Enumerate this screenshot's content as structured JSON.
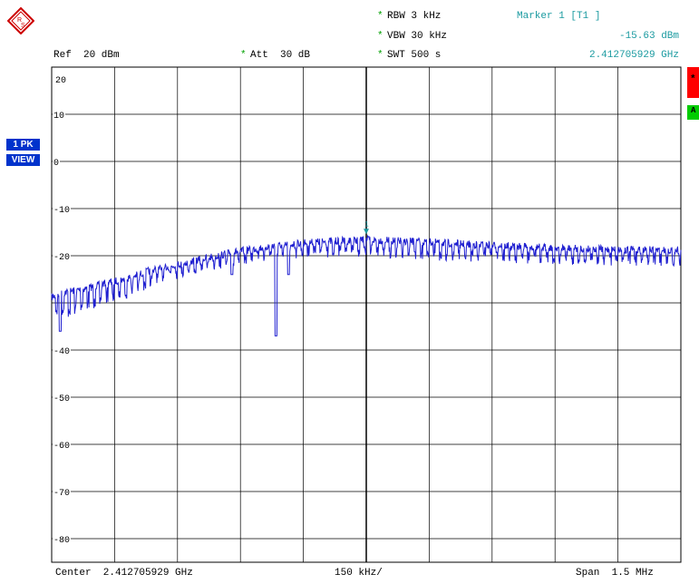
{
  "header": {
    "rbw": "RBW 3 kHz",
    "vbw": "VBW 30 kHz",
    "swt": "SWT 500 s",
    "ref": "Ref  20 dBm",
    "att": "Att  30 dB",
    "star": "*",
    "marker_title": "Marker 1 [T1 ]",
    "marker_level": "-15.63 dBm",
    "marker_freq": "2.412705929 GHz"
  },
  "badges": {
    "trace": "1 PK",
    "view": "VIEW"
  },
  "side_labels": {
    "a": "A",
    "star": "*"
  },
  "footer": {
    "center": "Center  2.412705929 GHz",
    "per_div": "150 kHz/",
    "span": "Span  1.5 MHz"
  },
  "colors": {
    "trace": "#1f1fd0",
    "marker": "#1a9aa0",
    "grid": "#000000",
    "side_red": "#ff0000",
    "side_green": "#00cc00"
  },
  "chart_data": {
    "type": "line",
    "title": "",
    "xlabel": "",
    "ylabel": "",
    "xlim": [
      2.411955929,
      2.413455929
    ],
    "ylim": [
      -85,
      20
    ],
    "yticks": [
      20,
      10,
      0,
      -10,
      -20,
      -30,
      -40,
      -50,
      -60,
      -70,
      -80
    ],
    "ytick_labels": [
      "20",
      "10",
      "0",
      "-10",
      "-20",
      "",
      "-40",
      "-50",
      "-60",
      "-70",
      "-80"
    ],
    "x_divisions": 10,
    "grid": true,
    "series": [
      {
        "x_unit": "GHz",
        "x": [
          2.411955929,
          2.411985929,
          2.412015929,
          2.412045929,
          2.412085929,
          2.412135929,
          2.412185929,
          2.412235929,
          2.412285929,
          2.412335929,
          2.412385929,
          2.412435929,
          2.412475929,
          2.412505929,
          2.412555929,
          2.412605929,
          2.412655929,
          2.412705929,
          2.412755929,
          2.412855929,
          2.412955929,
          2.413055929,
          2.413155929,
          2.413255929,
          2.413355929,
          2.413455929
        ],
        "upper": [
          -28,
          -27,
          -26.5,
          -26,
          -25,
          -24,
          -22.5,
          -21.5,
          -20.5,
          -19.5,
          -18.5,
          -17.8,
          -17.2,
          -17,
          -16.5,
          -16.2,
          -16,
          -15.8,
          -16,
          -16.3,
          -16.8,
          -17.2,
          -17.5,
          -17.8,
          -18,
          -18
        ],
        "lower": [
          -33,
          -34,
          -33,
          -32,
          -30,
          -29,
          -27,
          -25,
          -24,
          -23,
          -22,
          -21.5,
          -21,
          -20.5,
          -20.3,
          -20.2,
          -20.2,
          -20.2,
          -20.5,
          -21,
          -21.3,
          -21.6,
          -21.8,
          -22,
          -22,
          -22
        ],
        "dips": [
          {
            "x": 2.411975929,
            "y": -36
          },
          {
            "x": 2.412385929,
            "y": -24
          },
          {
            "x": 2.412490929,
            "y": -37
          },
          {
            "x": 2.412520929,
            "y": -24
          }
        ]
      }
    ],
    "marker": {
      "label": "1",
      "x": 2.412705929,
      "y": -15.63
    }
  }
}
